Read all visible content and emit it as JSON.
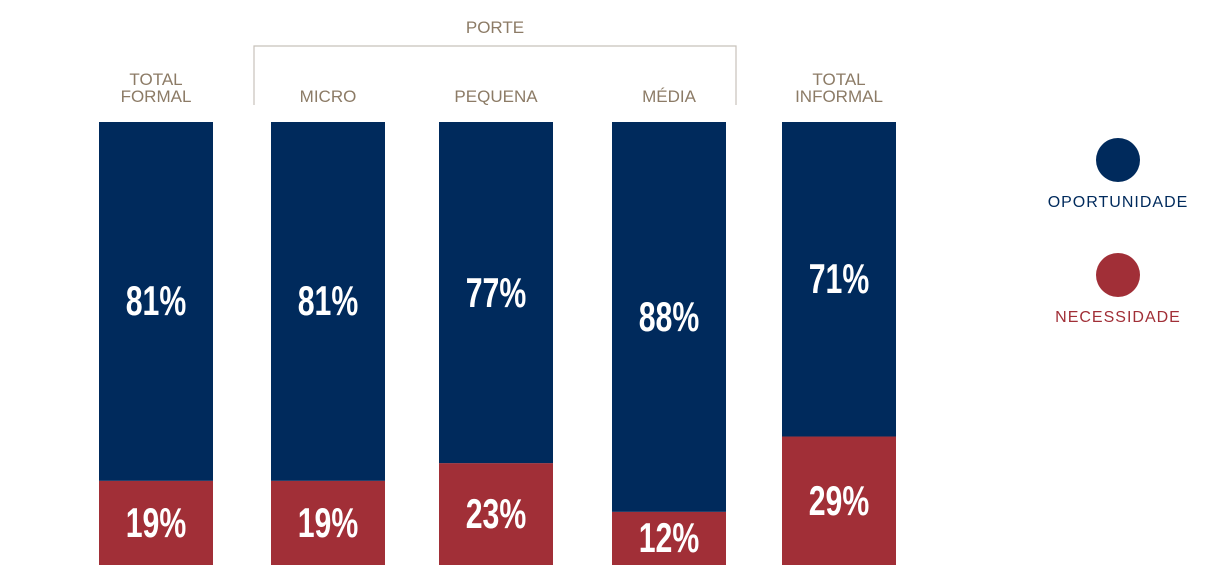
{
  "chart_data": {
    "type": "stacked_bar_100",
    "group_label": "PORTE",
    "categories": [
      "TOTAL FORMAL",
      "MICRO",
      "PEQUENA",
      "MÉDIA",
      "TOTAL INFORMAL"
    ],
    "series": [
      {
        "name": "OPORTUNIDADE",
        "color": "#002a5c",
        "values": [
          81,
          81,
          77,
          88,
          71
        ],
        "value_labels": [
          "81%",
          "81%",
          "77%",
          "88%",
          "71%"
        ]
      },
      {
        "name": "NECESSIDADE",
        "color": "#a12f37",
        "values": [
          19,
          19,
          23,
          12,
          29
        ],
        "value_labels": [
          "19%",
          "19%",
          "23%",
          "12%",
          "29%"
        ]
      }
    ],
    "ylim": [
      0,
      100
    ]
  }
}
